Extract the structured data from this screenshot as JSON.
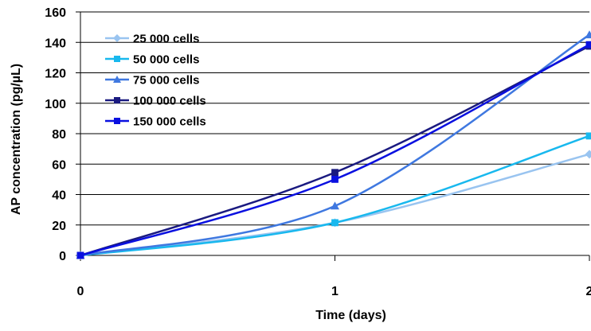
{
  "chart_data": {
    "type": "line",
    "xlabel": "Time (days)",
    "ylabel": "AP concentration (pg/µL)",
    "x": [
      0,
      1,
      2
    ],
    "xticks": [
      "0",
      "1",
      "2"
    ],
    "yticks": [
      "0",
      "20",
      "40",
      "60",
      "80",
      "100",
      "120",
      "140",
      "160"
    ],
    "ylim": [
      0,
      160
    ],
    "grid": "horizontal",
    "legend_position": "top-left",
    "series": [
      {
        "name": "25 000 cells",
        "marker": "diamond",
        "color": "#99c4f0",
        "values": [
          0,
          21.5,
          66.5
        ]
      },
      {
        "name": "50 000 cells",
        "marker": "square",
        "color": "#18b8ee",
        "values": [
          0,
          21.5,
          78.5
        ]
      },
      {
        "name": "75 000 cells",
        "marker": "triangle",
        "color": "#3f78e0",
        "values": [
          0,
          32.5,
          145
        ]
      },
      {
        "name": "100 000 cells",
        "marker": "square",
        "color": "#1a1a80",
        "values": [
          0,
          54.5,
          137.5
        ]
      },
      {
        "name": "150 000 cells",
        "marker": "square",
        "color": "#0a10e0",
        "values": [
          0,
          50,
          138.5
        ]
      }
    ]
  }
}
